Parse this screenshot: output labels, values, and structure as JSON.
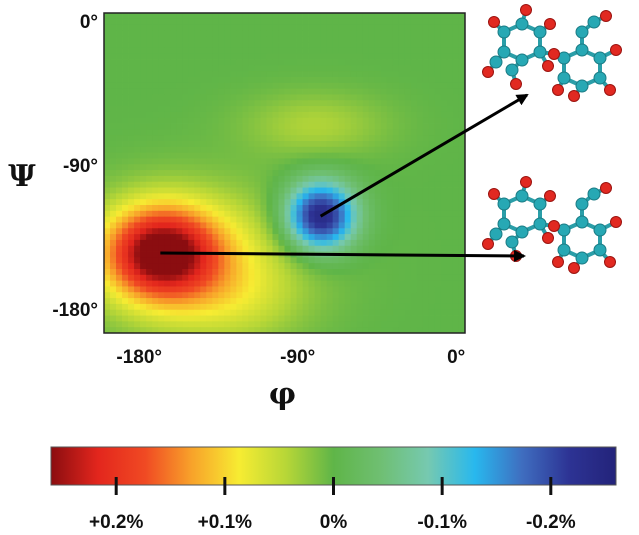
{
  "chart_data": {
    "type": "heatmap",
    "title": "",
    "xlabel": "φ",
    "ylabel": "Ψ",
    "xlim": [
      -200,
      5
    ],
    "ylim": [
      -195,
      5
    ],
    "x_ticks": [
      {
        "value": -180,
        "label": "-180°"
      },
      {
        "value": -90,
        "label": "-90°"
      },
      {
        "value": 0,
        "label": "0°"
      }
    ],
    "y_ticks": [
      {
        "value": 0,
        "label": "0°"
      },
      {
        "value": -90,
        "label": "-90°"
      },
      {
        "value": -180,
        "label": "-180°"
      }
    ],
    "background_value": 0.0,
    "features": [
      {
        "name": "positive-peak",
        "phi": -168,
        "psi": -145,
        "peak": 0.24,
        "sigma_phi": 22,
        "sigma_psi": 20
      },
      {
        "name": "positive-halo",
        "phi": -145,
        "psi": -150,
        "peak": 0.08,
        "sigma_phi": 40,
        "sigma_psi": 30
      },
      {
        "name": "negative-peak",
        "phi": -77,
        "psi": -122,
        "peak": -0.25,
        "sigma_phi": 14,
        "sigma_psi": 15
      },
      {
        "name": "weak-positive-ridge",
        "phi": -80,
        "psi": -65,
        "peak": 0.04,
        "sigma_phi": 28,
        "sigma_psi": 14
      },
      {
        "name": "weak-positive-lobe",
        "phi": -125,
        "psi": -175,
        "peak": 0.03,
        "sigma_phi": 25,
        "sigma_psi": 18
      }
    ],
    "grid": false,
    "colorbar": {
      "orientation": "horizontal",
      "position": "bottom",
      "range": [
        0.26,
        -0.26
      ],
      "ticks": [
        {
          "value": 0.2,
          "label": "+0.2%"
        },
        {
          "value": 0.1,
          "label": "+0.1%"
        },
        {
          "value": 0.0,
          "label": "0%"
        },
        {
          "value": -0.1,
          "label": "-0.1%"
        },
        {
          "value": -0.2,
          "label": "-0.2%"
        }
      ],
      "colors": [
        "#8b0d10",
        "#e3261d",
        "#f04a23",
        "#f8a32a",
        "#f7ec32",
        "#b6d637",
        "#5fb548",
        "#6fbf72",
        "#76c9b0",
        "#28b8ee",
        "#3f6ec0",
        "#2d3394",
        "#23237a"
      ]
    },
    "annotations": [
      {
        "name": "arrow-to-upper-molecule",
        "from_phi": -77,
        "from_psi": -122,
        "to": "upper-molecule"
      },
      {
        "name": "arrow-to-lower-molecule",
        "from_phi": -168,
        "from_psi": -145,
        "to": "lower-molecule"
      }
    ],
    "molecule_colors": {
      "carbon": "#27a8b4",
      "oxygen": "#e12921",
      "bond": "#2a9ea8"
    }
  }
}
